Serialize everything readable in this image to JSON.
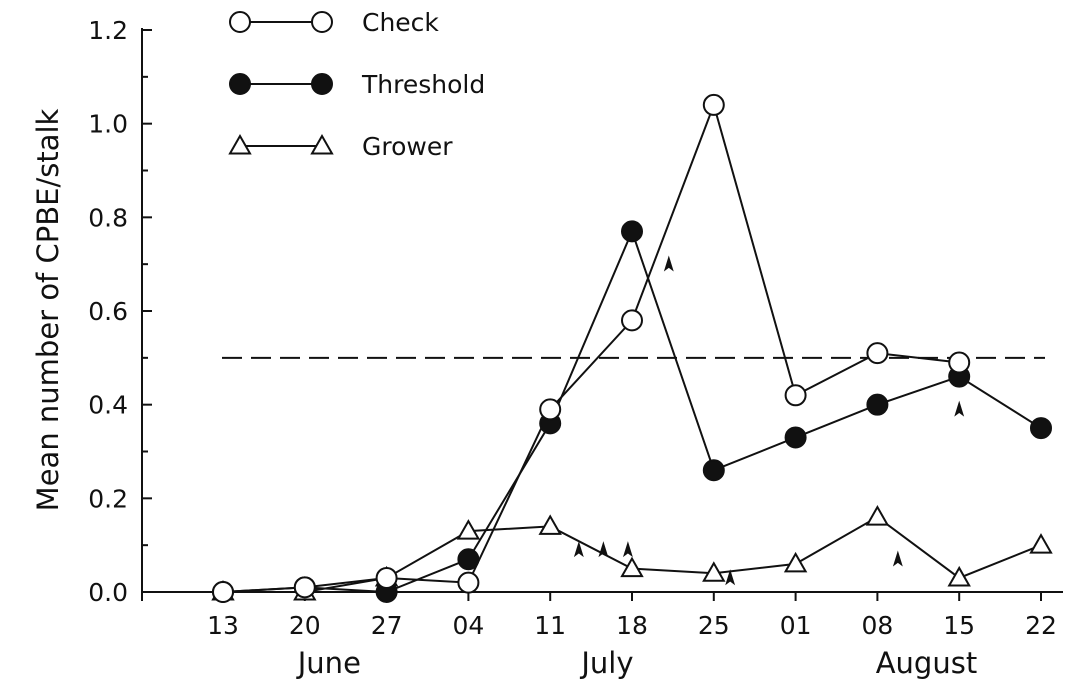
{
  "chart_data": {
    "type": "line",
    "title": "",
    "xlabel": "",
    "ylabel": "Mean number of CPBE/stalk",
    "ylim": [
      0,
      1.2
    ],
    "yticks": [
      "0.0",
      "0.2",
      "0.4",
      "0.6",
      "0.8",
      "1.0",
      "1.2"
    ],
    "categories": [
      "13",
      "20",
      "27",
      "04",
      "11",
      "18",
      "25",
      "01",
      "08",
      "15",
      "22"
    ],
    "months": [
      "June",
      "July",
      "August"
    ],
    "threshold_line": 0.5,
    "series": [
      {
        "name": "Check",
        "marker": "open-circle",
        "values": [
          0.0,
          0.01,
          0.03,
          0.02,
          0.39,
          0.58,
          1.04,
          0.42,
          0.51,
          0.49,
          null
        ]
      },
      {
        "name": "Threshold",
        "marker": "filled-circle",
        "values": [
          0.0,
          0.01,
          0.0,
          0.07,
          0.36,
          0.77,
          0.26,
          0.33,
          0.4,
          0.46,
          0.35
        ]
      },
      {
        "name": "Grower",
        "marker": "open-triangle",
        "values": [
          0.0,
          0.0,
          0.03,
          0.13,
          0.14,
          0.05,
          0.04,
          0.06,
          0.16,
          0.03,
          0.1
        ]
      }
    ],
    "arrowheads_x": [
      4.35,
      4.65,
      4.95,
      5.45,
      6.2,
      8.25,
      9.0
    ],
    "arrowheads_y": [
      0.09,
      0.09,
      0.09,
      0.7,
      0.03,
      0.07,
      0.39
    ],
    "grid": false,
    "legend_position": "top-left"
  }
}
